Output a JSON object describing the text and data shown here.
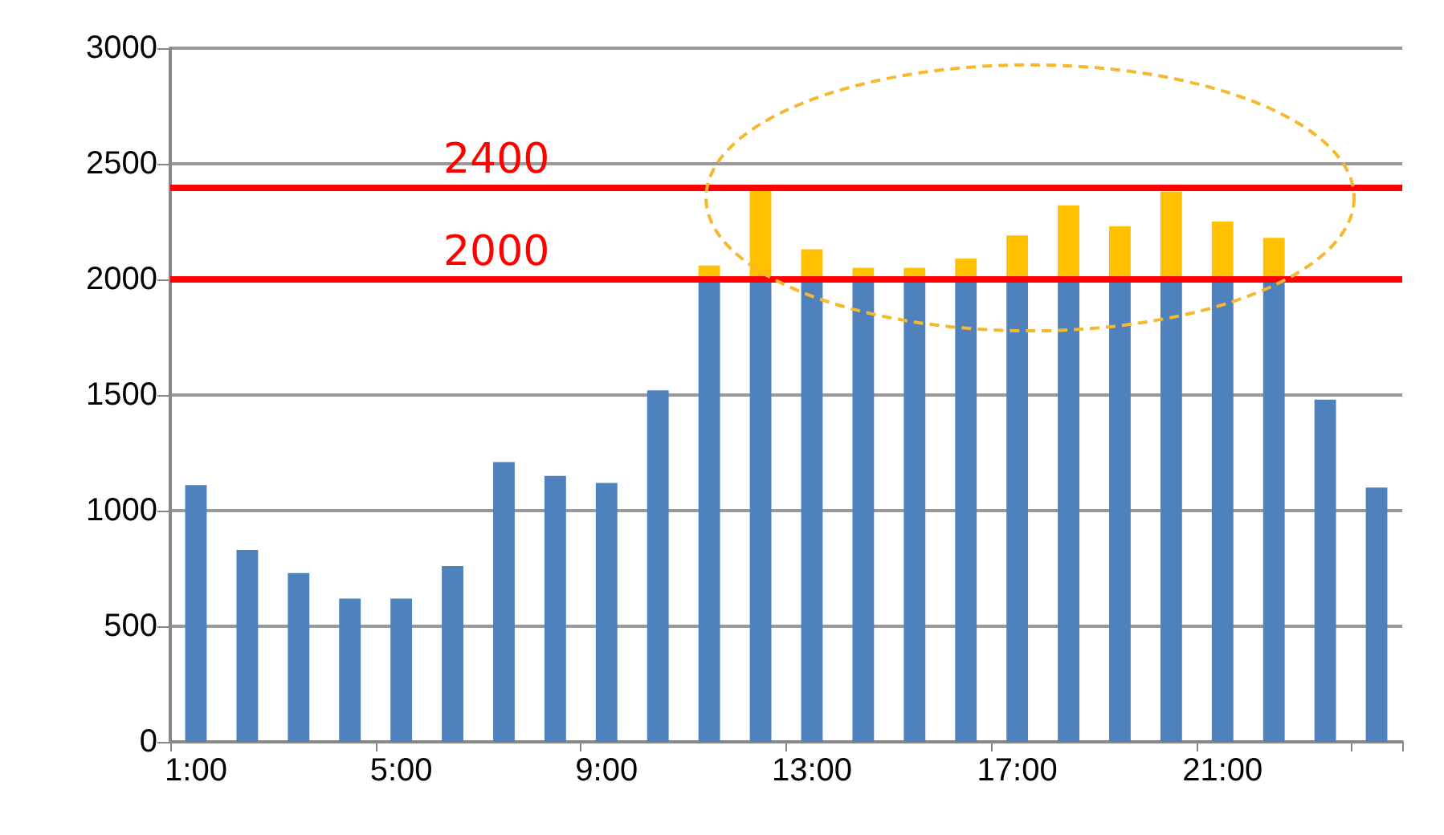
{
  "chart_data": {
    "type": "bar",
    "stacked": true,
    "categories": [
      "1:00",
      null,
      null,
      null,
      "5:00",
      null,
      null,
      null,
      "9:00",
      null,
      null,
      null,
      "13:00",
      null,
      null,
      null,
      "17:00",
      null,
      null,
      null,
      "21:00",
      null,
      null,
      null
    ],
    "series": [
      {
        "color": "#4f81bd",
        "values": [
          1110,
          830,
          730,
          620,
          620,
          760,
          1210,
          1150,
          1120,
          1520,
          2000,
          2000,
          2000,
          2000,
          2000,
          2000,
          2000,
          2000,
          2000,
          2000,
          2000,
          2000,
          1480,
          1100
        ]
      },
      {
        "color": "#ffc000",
        "values": [
          null,
          null,
          null,
          null,
          null,
          null,
          null,
          null,
          null,
          null,
          60,
          400,
          130,
          50,
          50,
          90,
          190,
          320,
          230,
          380,
          250,
          180,
          null,
          null
        ]
      }
    ],
    "ylim": [
      0,
      3000
    ],
    "yticks": [
      0,
      500,
      1000,
      1500,
      2000,
      2500,
      3000
    ],
    "grid": "y",
    "ref_lines": [
      {
        "axis": "y",
        "value": 2400,
        "label": "2400",
        "color": "#ff0000"
      },
      {
        "axis": "y",
        "value": 2000,
        "label": "2000",
        "color": "#ff0000"
      }
    ]
  }
}
